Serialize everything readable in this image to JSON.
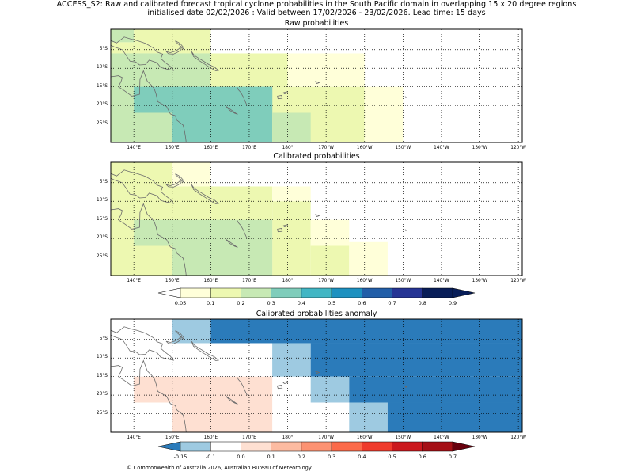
{
  "figure": {
    "title_line1": "ACCESS_S2: Raw and calibrated forecast tropical cyclone probabilities in the South Pacific domain in overlapping 15 x 20 degree regions",
    "title_line2": "initialised date 02/02/2026 :  Valid between 17/02/2026 - 23/02/2026. Lead time: 15 days",
    "copyright": "© Commonwealth of Australia 2026, Australian Bureau of Meteorology"
  },
  "axes": {
    "lat_labels": [
      "5°S",
      "10°S",
      "15°S",
      "20°S",
      "25°S"
    ],
    "lon_labels": [
      "140°E",
      "150°E",
      "160°E",
      "170°E",
      "180°",
      "170°W",
      "160°W",
      "150°W",
      "140°W",
      "130°W",
      "120°W"
    ]
  },
  "colors": {
    "prob": [
      "#ffffd9",
      "#edf8b1",
      "#c7e9b4",
      "#7fcdbb",
      "#41b6c4",
      "#1d91c0",
      "#225ea8",
      "#253494",
      "#081d58"
    ],
    "anom": [
      "#2b7bba",
      "#9ecae1",
      "#ffffff",
      "#fee0d2",
      "#fcbba1",
      "#fc9272",
      "#fb6a4a",
      "#ef3b2c",
      "#cb181d",
      "#a50f15",
      "#67000d"
    ],
    "land": "#6b6b6b"
  },
  "chart_data": [
    {
      "type": "heatmap",
      "title": "Raw probabilities",
      "lon_range": [
        134,
        241
      ],
      "lat_range": [
        -30,
        0.5
      ],
      "cells_note": "probability by region; lon/lat in degrees (east positive, 180-240 = 180 to 120W)",
      "cells": [
        {
          "lon": [
            134,
            140
          ],
          "lat": [
            -3,
            0.5
          ],
          "p": 0.22
        },
        {
          "lon": [
            140,
            160
          ],
          "lat": [
            -6,
            0.5
          ],
          "p": 0.15
        },
        {
          "lon": [
            134,
            140
          ],
          "lat": [
            -6,
            -3
          ],
          "p": 0.15
        },
        {
          "lon": [
            134,
            160
          ],
          "lat": [
            -30,
            -6
          ],
          "p": 0.25
        },
        {
          "lon": [
            160,
            180
          ],
          "lat": [
            -30,
            -6
          ],
          "p": 0.15
        },
        {
          "lon": [
            180,
            200
          ],
          "lat": [
            -15,
            -6
          ],
          "p": 0.08
        },
        {
          "lon": [
            180,
            200
          ],
          "lat": [
            -30,
            -15
          ],
          "p": 0.15
        },
        {
          "lon": [
            200,
            210
          ],
          "lat": [
            -30,
            -15
          ],
          "p": 0.08
        },
        {
          "lon": [
            140,
            160
          ],
          "lat": [
            -30,
            -22
          ],
          "p": 0.25
        },
        {
          "lon": [
            140,
            176
          ],
          "lat": [
            -22,
            -15
          ],
          "p": 0.35
        },
        {
          "lon": [
            150,
            176
          ],
          "lat": [
            -30,
            -15
          ],
          "p": 0.35
        },
        {
          "lon": [
            176,
            186
          ],
          "lat": [
            -30,
            -22
          ],
          "p": 0.25
        }
      ]
    },
    {
      "type": "heatmap",
      "title": "Calibrated probabilities",
      "lon_range": [
        134,
        241
      ],
      "lat_range": [
        -30,
        0.5
      ],
      "cells": [
        {
          "lon": [
            134,
            150
          ],
          "lat": [
            -30,
            0.5
          ],
          "p": 0.15
        },
        {
          "lon": [
            150,
            160
          ],
          "lat": [
            -6,
            0.5
          ],
          "p": 0.08
        },
        {
          "lon": [
            150,
            160
          ],
          "lat": [
            -30,
            -6
          ],
          "p": 0.15
        },
        {
          "lon": [
            160,
            176
          ],
          "lat": [
            -30,
            -6
          ],
          "p": 0.15
        },
        {
          "lon": [
            176,
            186
          ],
          "lat": [
            -10,
            -6
          ],
          "p": 0.08
        },
        {
          "lon": [
            176,
            186
          ],
          "lat": [
            -30,
            -10
          ],
          "p": 0.15
        },
        {
          "lon": [
            186,
            196
          ],
          "lat": [
            -22,
            -15
          ],
          "p": 0.08
        },
        {
          "lon": [
            186,
            196
          ],
          "lat": [
            -30,
            -22
          ],
          "p": 0.15
        },
        {
          "lon": [
            196,
            206
          ],
          "lat": [
            -30,
            -21
          ],
          "p": 0.08
        },
        {
          "lon": [
            140,
            150
          ],
          "lat": [
            -22,
            -15
          ],
          "p": 0.25
        },
        {
          "lon": [
            150,
            176
          ],
          "lat": [
            -30,
            -15
          ],
          "p": 0.25
        }
      ]
    },
    {
      "type": "heatmap",
      "title": "Calibrated probabilities anomaly",
      "lon_range": [
        134,
        241
      ],
      "lat_range": [
        -30,
        0.5
      ],
      "cells": [
        {
          "lon": [
            150,
            160
          ],
          "lat": [
            -6,
            0.5
          ],
          "a": -0.1
        },
        {
          "lon": [
            160,
            241
          ],
          "lat": [
            -6,
            0.5
          ],
          "a": -0.2
        },
        {
          "lon": [
            176,
            186
          ],
          "lat": [
            -15,
            -6
          ],
          "a": -0.1
        },
        {
          "lon": [
            186,
            241
          ],
          "lat": [
            -15,
            -6
          ],
          "a": -0.2
        },
        {
          "lon": [
            186,
            196
          ],
          "lat": [
            -22,
            -15
          ],
          "a": -0.1
        },
        {
          "lon": [
            196,
            241
          ],
          "lat": [
            -22,
            -15
          ],
          "a": -0.2
        },
        {
          "lon": [
            196,
            206
          ],
          "lat": [
            -30,
            -22
          ],
          "a": -0.1
        },
        {
          "lon": [
            206,
            241
          ],
          "lat": [
            -30,
            -22
          ],
          "a": -0.2
        },
        {
          "lon": [
            140,
            150
          ],
          "lat": [
            -22,
            -15
          ],
          "a": 0.05
        },
        {
          "lon": [
            150,
            176
          ],
          "lat": [
            -30,
            -15
          ],
          "a": 0.05
        }
      ]
    }
  ],
  "colorbars": [
    {
      "name": "probability",
      "ticks": [
        "0.05",
        "0.1",
        "0.2",
        "0.3",
        "0.4",
        "0.5",
        "0.6",
        "0.7",
        "0.8",
        "0.9"
      ]
    },
    {
      "name": "anomaly",
      "ticks": [
        "-0.15",
        "-0.1",
        "0.0",
        "0.1",
        "0.2",
        "0.3",
        "0.4",
        "0.5",
        "0.6",
        "0.7"
      ]
    }
  ]
}
